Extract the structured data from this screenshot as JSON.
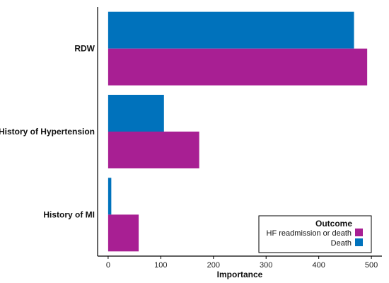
{
  "chart_data": {
    "type": "bar",
    "orientation": "horizontal",
    "categories": [
      "RDW",
      "History of Hypertension",
      "History of MI"
    ],
    "series": [
      {
        "name": "Death",
        "values": [
          467,
          106,
          6
        ],
        "color": "#0072bc"
      },
      {
        "name": "HF readmission or death",
        "values": [
          492,
          173,
          58
        ],
        "color": "#a81f93"
      }
    ],
    "xlabel": "Importance",
    "ylabel": "",
    "xlim": [
      -20,
      520
    ],
    "xticks": [
      0,
      100,
      200,
      300,
      400,
      500
    ],
    "legend": {
      "title": "Outcome",
      "placement": "bottom-right",
      "order": [
        "HF readmission or death",
        "Death"
      ]
    },
    "grid": false
  }
}
